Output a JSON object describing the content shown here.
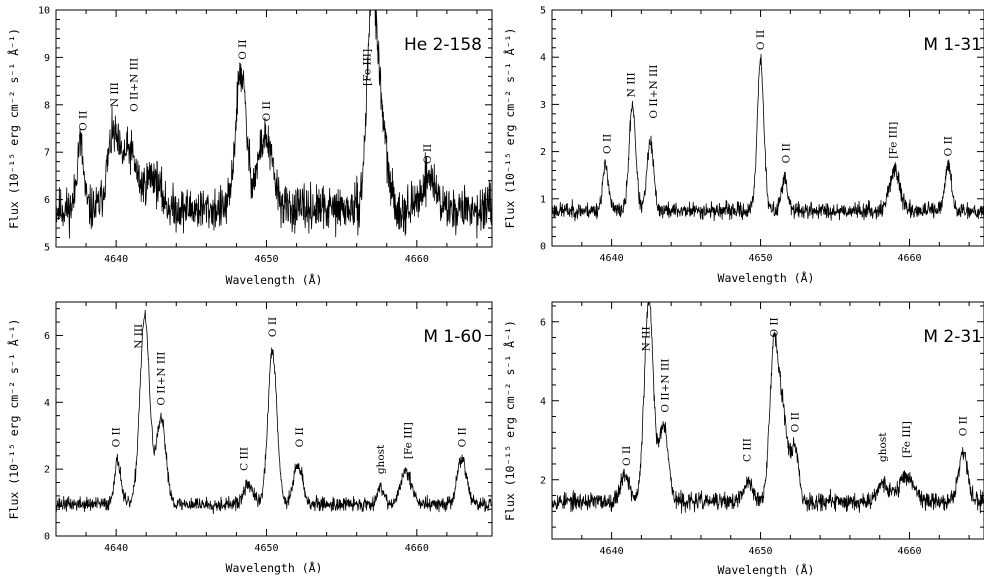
{
  "chart_data": [
    {
      "type": "line",
      "title": "He 2-158",
      "xlabel": "Wavelength (Å)",
      "ylabel": "Flux (10⁻¹⁵ erg cm⁻² s⁻¹ Å⁻¹)",
      "xlim": [
        4636,
        4665
      ],
      "ylim": [
        5,
        10
      ],
      "xticks": [
        4640,
        4650,
        4660
      ],
      "yticks": [
        5,
        6,
        7,
        8,
        9,
        10
      ],
      "continuum": 5.8,
      "noise": 0.35,
      "seed": 11,
      "lines": [
        {
          "x": 4637.6,
          "peak": 1.4,
          "width": 0.22
        },
        {
          "x": 4639.8,
          "peak": 1.5,
          "width": 0.4
        },
        {
          "x": 4640.9,
          "peak": 1.2,
          "width": 0.45
        },
        {
          "x": 4642.4,
          "peak": 0.7,
          "width": 0.5
        },
        {
          "x": 4648.3,
          "peak": 2.9,
          "width": 0.35
        },
        {
          "x": 4649.9,
          "peak": 1.5,
          "width": 0.5
        },
        {
          "x": 4657.0,
          "peak": 4.1,
          "width": 0.32
        },
        {
          "x": 4657.6,
          "peak": 1.8,
          "width": 0.4
        },
        {
          "x": 4660.8,
          "peak": 0.7,
          "width": 0.45
        }
      ],
      "annotations": [
        {
          "text": "O II",
          "x": 4637.8,
          "y": 7.45
        },
        {
          "text": "N III",
          "x": 4639.9,
          "y": 7.95
        },
        {
          "text": "O II+N III",
          "x": 4641.2,
          "y": 7.85
        },
        {
          "text": "O II",
          "x": 4648.4,
          "y": 8.95
        },
        {
          "text": "O II",
          "x": 4650.0,
          "y": 7.65
        },
        {
          "text": "[Fe III]",
          "x": 4656.7,
          "y": 8.4
        },
        {
          "text": "O II",
          "x": 4660.7,
          "y": 6.75
        }
      ]
    },
    {
      "type": "line",
      "title": "M 1-31",
      "xlabel": "Wavelength (Å)",
      "ylabel": "Flux (10⁻¹⁵ erg cm⁻² s⁻¹ Å⁻¹)",
      "xlim": [
        4636,
        4665
      ],
      "ylim": [
        0,
        5
      ],
      "xticks": [
        4640,
        4650,
        4660
      ],
      "yticks": [
        0,
        1,
        2,
        3,
        4,
        5
      ],
      "continuum": 0.75,
      "noise": 0.13,
      "seed": 23,
      "lines": [
        {
          "x": 4639.6,
          "peak": 0.95,
          "width": 0.2
        },
        {
          "x": 4641.4,
          "peak": 2.25,
          "width": 0.22
        },
        {
          "x": 4642.6,
          "peak": 1.45,
          "width": 0.22
        },
        {
          "x": 4650.0,
          "peak": 3.2,
          "width": 0.22
        },
        {
          "x": 4651.6,
          "peak": 0.7,
          "width": 0.2
        },
        {
          "x": 4659.0,
          "peak": 0.85,
          "width": 0.35
        },
        {
          "x": 4662.6,
          "peak": 0.95,
          "width": 0.22
        }
      ],
      "annotations": [
        {
          "text": "O II",
          "x": 4639.7,
          "y": 1.95
        },
        {
          "text": "N III",
          "x": 4641.3,
          "y": 3.15
        },
        {
          "text": "O II+N III",
          "x": 4642.8,
          "y": 2.7
        },
        {
          "text": "O II",
          "x": 4650.0,
          "y": 4.15
        },
        {
          "text": "O II",
          "x": 4651.7,
          "y": 1.75
        },
        {
          "text": "[Fe III]",
          "x": 4658.9,
          "y": 1.85
        },
        {
          "text": "O II",
          "x": 4662.6,
          "y": 1.9
        }
      ]
    },
    {
      "type": "line",
      "title": "M 1-60",
      "xlabel": "Wavelength (Å)",
      "ylabel": "Flux (10⁻¹⁵ erg cm⁻² s⁻¹ Å⁻¹)",
      "xlim": [
        4636,
        4665
      ],
      "ylim": [
        0,
        7
      ],
      "xticks": [
        4640,
        4650,
        4660
      ],
      "yticks": [
        0,
        2,
        4,
        6
      ],
      "continuum": 0.95,
      "noise": 0.16,
      "seed": 37,
      "lines": [
        {
          "x": 4640.1,
          "peak": 1.3,
          "width": 0.22
        },
        {
          "x": 4641.9,
          "peak": 5.6,
          "width": 0.32
        },
        {
          "x": 4643.0,
          "peak": 2.5,
          "width": 0.32
        },
        {
          "x": 4648.8,
          "peak": 0.6,
          "width": 0.3
        },
        {
          "x": 4650.4,
          "peak": 4.6,
          "width": 0.3
        },
        {
          "x": 4652.1,
          "peak": 1.2,
          "width": 0.3
        },
        {
          "x": 4657.6,
          "peak": 0.5,
          "width": 0.25
        },
        {
          "x": 4659.3,
          "peak": 1.0,
          "width": 0.35
        },
        {
          "x": 4663.0,
          "peak": 1.4,
          "width": 0.3
        }
      ],
      "annotations": [
        {
          "text": "O II",
          "x": 4640.0,
          "y": 2.65
        },
        {
          "text": "N III",
          "x": 4641.5,
          "y": 5.6
        },
        {
          "text": "O II+N III",
          "x": 4643.0,
          "y": 3.9
        },
        {
          "text": "C III",
          "x": 4648.5,
          "y": 1.95
        },
        {
          "text": "O II",
          "x": 4650.4,
          "y": 5.95
        },
        {
          "text": "O II",
          "x": 4652.2,
          "y": 2.65
        },
        {
          "text": "ghost",
          "x": 4657.6,
          "y": 1.85
        },
        {
          "text": "[Fe III]",
          "x": 4659.4,
          "y": 2.3
        },
        {
          "text": "O II",
          "x": 4663.0,
          "y": 2.65
        }
      ]
    },
    {
      "type": "line",
      "title": "M 2-31",
      "xlabel": "Wavelength (Å)",
      "ylabel": "Flux (10⁻¹⁵ erg cm⁻² s⁻¹ Å⁻¹)",
      "xlim": [
        4636,
        4665
      ],
      "ylim": [
        0.5,
        6.5
      ],
      "xticks": [
        4640,
        4650,
        4660
      ],
      "yticks": [
        2,
        4,
        6
      ],
      "continuum": 1.45,
      "noise": 0.17,
      "seed": 53,
      "lines": [
        {
          "x": 4640.9,
          "peak": 0.7,
          "width": 0.3
        },
        {
          "x": 4642.5,
          "peak": 5.1,
          "width": 0.3
        },
        {
          "x": 4643.5,
          "peak": 2.0,
          "width": 0.3
        },
        {
          "x": 4649.2,
          "peak": 0.5,
          "width": 0.3
        },
        {
          "x": 4650.9,
          "peak": 3.9,
          "width": 0.28
        },
        {
          "x": 4651.5,
          "peak": 2.2,
          "width": 0.3
        },
        {
          "x": 4652.3,
          "peak": 1.4,
          "width": 0.25
        },
        {
          "x": 4658.2,
          "peak": 0.45,
          "width": 0.4
        },
        {
          "x": 4659.8,
          "peak": 0.65,
          "width": 0.5
        },
        {
          "x": 4663.6,
          "peak": 1.25,
          "width": 0.3
        }
      ],
      "annotations": [
        {
          "text": "O II",
          "x": 4641.0,
          "y": 2.35
        },
        {
          "text": "N III",
          "x": 4642.3,
          "y": 5.25
        },
        {
          "text": "O II+N III",
          "x": 4643.6,
          "y": 3.7
        },
        {
          "text": "C III",
          "x": 4649.1,
          "y": 2.45
        },
        {
          "text": "O II",
          "x": 4650.9,
          "y": 5.6
        },
        {
          "text": "O II",
          "x": 4652.3,
          "y": 3.2
        },
        {
          "text": "ghost",
          "x": 4658.2,
          "y": 2.45
        },
        {
          "text": "[Fe III]",
          "x": 4659.8,
          "y": 2.55
        },
        {
          "text": "O II",
          "x": 4663.6,
          "y": 3.1
        }
      ]
    }
  ]
}
